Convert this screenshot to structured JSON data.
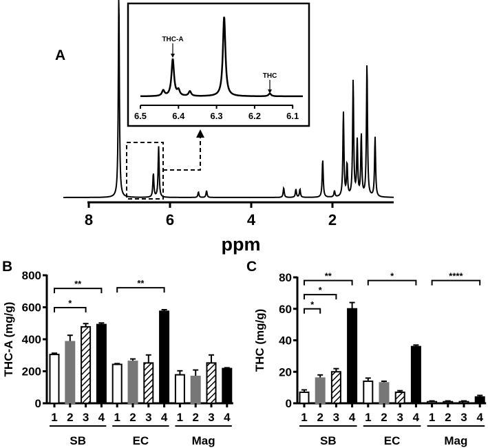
{
  "chart_data": [
    {
      "panel": "A",
      "type": "line",
      "title": "",
      "xlabel": "ppm",
      "ylabel": "",
      "xlim": [
        8,
        0.5
      ],
      "x_ticks": [
        "8",
        "6",
        "4",
        "2"
      ],
      "x_tick_values": [
        8,
        6,
        4,
        2
      ],
      "peaks_ppm": [
        7.26,
        6.41,
        6.28,
        5.3,
        5.1,
        3.2,
        2.9,
        2.8,
        2.24,
        1.95,
        1.73,
        1.64,
        1.49,
        1.39,
        1.29,
        1.15,
        0.95
      ],
      "peak_intensity": [
        300,
        35,
        74,
        8,
        10,
        14,
        12,
        12,
        55,
        9,
        123,
        47,
        169,
        80,
        89,
        195,
        87
      ],
      "inset": {
        "xlim": [
          6.5,
          6.1
        ],
        "x_ticks": [
          "6.5",
          "6.4",
          "6.3",
          "6.2",
          "6.1"
        ],
        "x_tick_values": [
          6.5,
          6.4,
          6.3,
          6.2,
          6.1
        ],
        "peaks_ppm": [
          6.44,
          6.415,
          6.4,
          6.37,
          6.28,
          6.16
        ],
        "peak_intensity": [
          8,
          54,
          8,
          7,
          116,
          4
        ],
        "annotations": [
          {
            "text": "THC-A",
            "ppm": 6.415
          },
          {
            "text": "THC",
            "ppm": 6.16
          }
        ]
      }
    },
    {
      "panel": "B",
      "type": "bar",
      "ylabel": "THC-A (mg/g)",
      "ylim": [
        0,
        800
      ],
      "y_ticks": [
        "0",
        "200",
        "400",
        "600",
        "800"
      ],
      "y_tick_values": [
        0,
        200,
        400,
        600,
        800
      ],
      "groups": [
        "SB",
        "EC",
        "Mag"
      ],
      "categories": [
        "1",
        "2",
        "3",
        "4"
      ],
      "series": [
        {
          "group": "SB",
          "values": [
            305,
            385,
            478,
            492
          ],
          "errors": [
            8,
            40,
            20,
            10
          ]
        },
        {
          "group": "EC",
          "values": [
            243,
            262,
            252,
            575
          ],
          "errors": [
            5,
            15,
            50,
            10
          ]
        },
        {
          "group": "Mag",
          "values": [
            178,
            168,
            252,
            217
          ],
          "errors": [
            25,
            40,
            50,
            5
          ]
        }
      ],
      "significance": [
        {
          "from": 0,
          "to": 3,
          "label": "**",
          "y": 718
        },
        {
          "from": 0,
          "to": 2,
          "label": "*",
          "y": 598
        },
        {
          "from": 4,
          "to": 7,
          "label": "**",
          "y": 722
        }
      ]
    },
    {
      "panel": "C",
      "type": "bar",
      "ylabel": "THC (mg/g)",
      "ylim": [
        0,
        80
      ],
      "y_ticks": [
        "0",
        "20",
        "40",
        "60",
        "80"
      ],
      "y_tick_values": [
        0,
        20,
        40,
        60,
        80
      ],
      "groups": [
        "SB",
        "EC",
        "Mag"
      ],
      "categories": [
        "1",
        "2",
        "3",
        "4"
      ],
      "series": [
        {
          "group": "SB",
          "values": [
            7,
            16,
            20,
            60
          ],
          "errors": [
            1.5,
            2,
            2,
            4
          ]
        },
        {
          "group": "EC",
          "values": [
            14,
            13,
            7,
            36
          ],
          "errors": [
            2,
            1,
            1,
            1
          ]
        },
        {
          "group": "Mag",
          "values": [
            1,
            1,
            1,
            4
          ],
          "errors": [
            0.5,
            0.5,
            0.5,
            1
          ]
        }
      ],
      "significance": [
        {
          "from": 0,
          "to": 3,
          "label": "**",
          "y": 78
        },
        {
          "from": 0,
          "to": 2,
          "label": "*",
          "y": 69
        },
        {
          "from": 0,
          "to": 1,
          "label": "*",
          "y": 60
        },
        {
          "from": 4,
          "to": 7,
          "label": "*",
          "y": 78
        },
        {
          "from": 8,
          "to": 11,
          "label": "****",
          "y": 78
        }
      ]
    }
  ],
  "bar_fills": [
    "#ffffff",
    "#777777",
    "hatch",
    "#000000"
  ],
  "colors": {
    "ink": "#000000",
    "gray": "#777777"
  }
}
